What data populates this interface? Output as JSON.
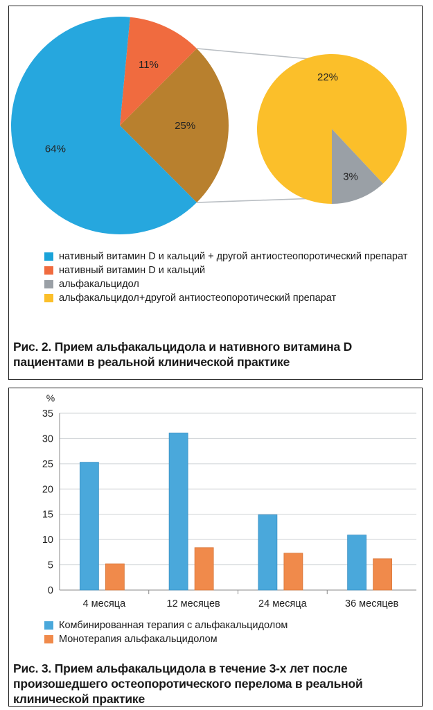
{
  "figure2": {
    "chart_data": {
      "type": "pie",
      "main_pie": {
        "slices": [
          {
            "label": "нативный витамин D и кальций + другой антиостеопоротический препарат",
            "value": 64,
            "value_label": "64%",
            "color": "#26a7de"
          },
          {
            "label": "нативный витамин D и кальций",
            "value": 11,
            "value_label": "11%",
            "color": "#f06b3f"
          },
          {
            "label": "альфакальцидол (всего)",
            "value": 25,
            "value_label": "25%",
            "color": "#b8802e"
          }
        ]
      },
      "exploded_pie": {
        "slices": [
          {
            "label": "альфакальцидол+другой антиостеопоротический препарат",
            "value": 22,
            "value_label": "22%",
            "color": "#fbbf2a"
          },
          {
            "label": "альфакальцидол",
            "value": 3,
            "value_label": "3%",
            "color": "#9aa0a6"
          }
        ]
      }
    },
    "legend": [
      {
        "text": "нативный витамин D и кальций + другой антиостеопоротический препарат",
        "color": "#1aa3d9"
      },
      {
        "text": "нативный витамин D и кальций",
        "color": "#f06b3f"
      },
      {
        "text": "альфакальцидол",
        "color": "#9aa0a6"
      },
      {
        "text": "альфакальцидол+другой антиостеопоротический препарат",
        "color": "#fbbf2a"
      }
    ],
    "caption": "Рис. 2. Прием альфакальцидола и нативного витамина D пациентами в реальной клинической практике"
  },
  "figure3": {
    "chart_data": {
      "type": "bar",
      "categories": [
        "4 месяца",
        "12 месяцев",
        "24 месяца",
        "36 месяцев"
      ],
      "series": [
        {
          "name": "Комбинированная терапия с альфакальцидолом",
          "values": [
            25.3,
            31.1,
            14.9,
            10.9
          ],
          "color": "#4aa8db"
        },
        {
          "name": "Монотерапия альфакальцидолом",
          "values": [
            5.2,
            8.4,
            7.3,
            6.2
          ],
          "color": "#f08a4b"
        }
      ],
      "ylabel": "%",
      "ylim": [
        0,
        35
      ],
      "yticks": [
        0,
        5,
        10,
        15,
        20,
        25,
        30,
        35
      ],
      "grid": true
    },
    "caption": "Рис. 3. Прием альфакальцидола в течение 3-х лет после произошедшего остеопоротического перелома в реальной клинической практике"
  }
}
